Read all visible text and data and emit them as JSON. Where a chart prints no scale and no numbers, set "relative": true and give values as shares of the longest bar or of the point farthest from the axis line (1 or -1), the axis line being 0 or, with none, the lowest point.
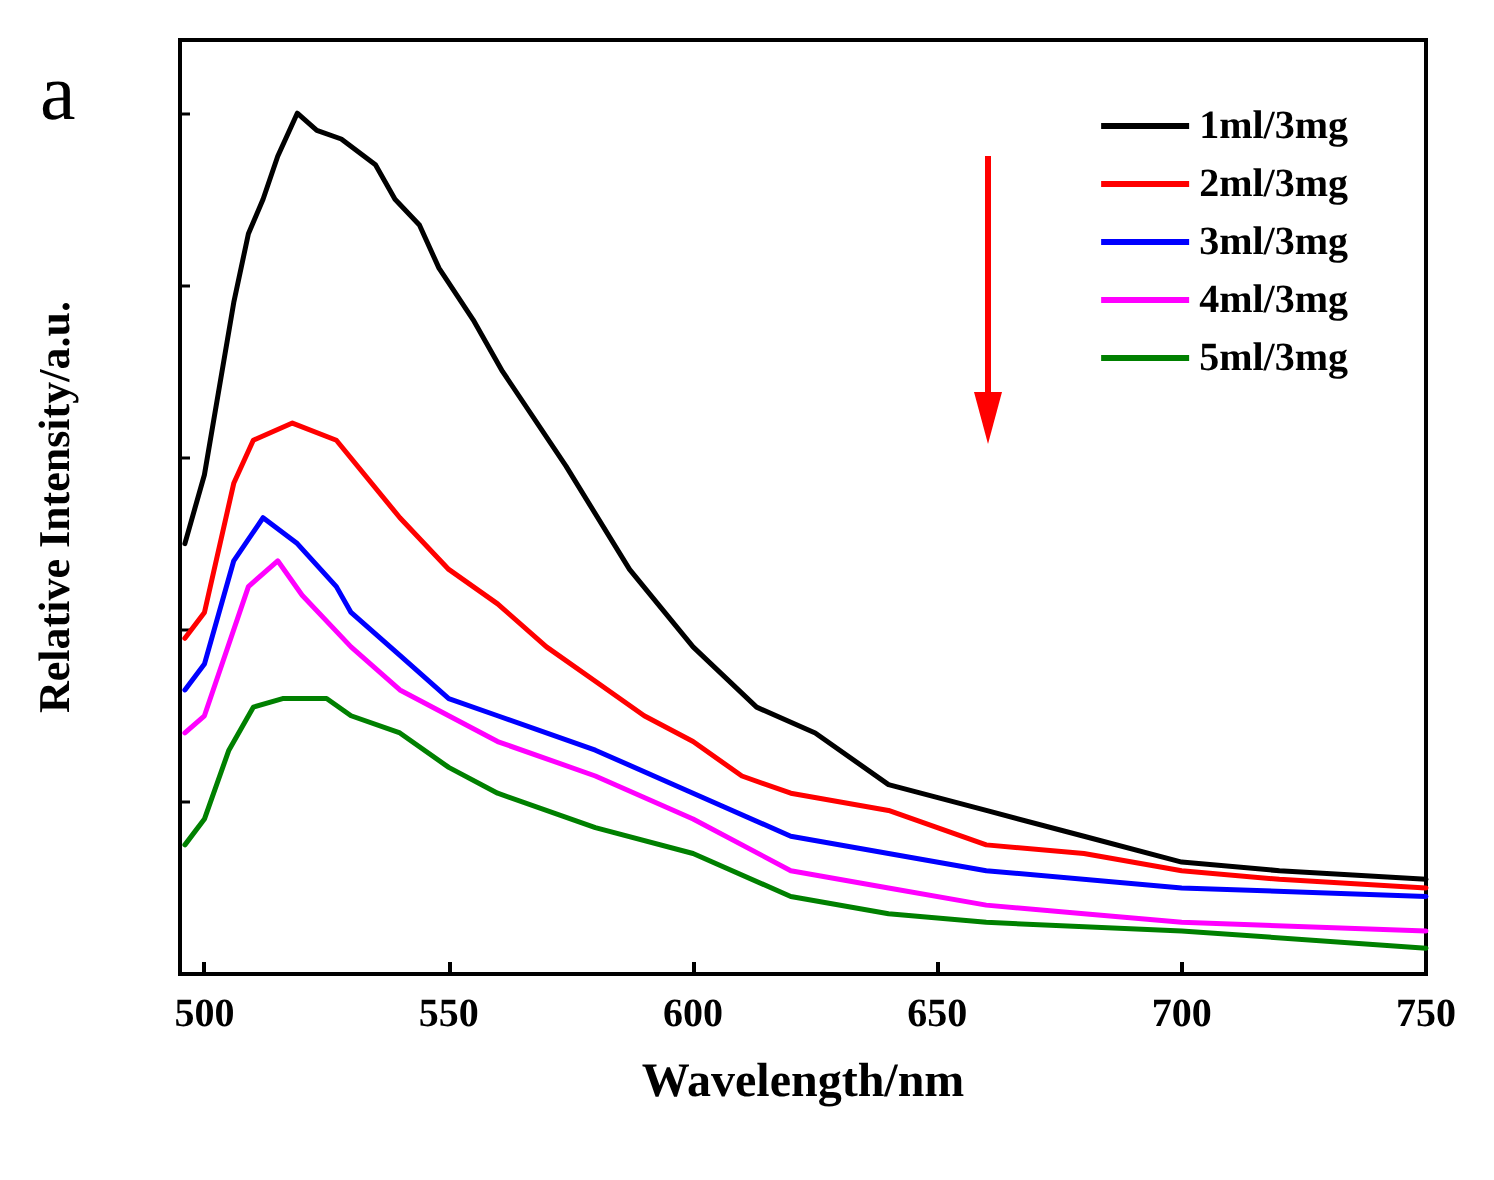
{
  "chart_data": {
    "type": "line",
    "xlabel": "Wavelength/nm",
    "ylabel": "Relative Intensity/a.u.",
    "relative": true,
    "xlim": [
      495,
      750
    ],
    "xticks": [
      500,
      550,
      600,
      650,
      700,
      750
    ],
    "legend": "top right",
    "grid": false,
    "marker": "none",
    "line_style": "solid",
    "annotations": [
      "a"
    ],
    "series": [
      {
        "name": "1ml/3mg",
        "color": "#000000",
        "x": [
          496,
          500,
          503,
          506,
          509,
          512,
          515,
          519,
          523,
          528,
          535,
          539,
          544,
          548,
          555,
          561,
          574,
          587,
          600,
          613,
          625,
          640,
          660,
          680,
          700,
          720,
          750
        ],
        "values": [
          0.5,
          0.58,
          0.68,
          0.78,
          0.86,
          0.9,
          0.95,
          1.0,
          0.98,
          0.97,
          0.94,
          0.9,
          0.87,
          0.82,
          0.76,
          0.7,
          0.59,
          0.47,
          0.38,
          0.31,
          0.28,
          0.22,
          0.19,
          0.16,
          0.13,
          0.12,
          0.11
        ]
      },
      {
        "name": "2ml/3mg",
        "color": "#ff0000",
        "x": [
          496,
          500,
          506,
          510,
          518,
          527,
          540,
          550,
          560,
          570,
          580,
          590,
          600,
          610,
          620,
          640,
          660,
          680,
          700,
          720,
          750
        ],
        "values": [
          0.39,
          0.42,
          0.57,
          0.62,
          0.64,
          0.62,
          0.53,
          0.47,
          0.43,
          0.38,
          0.34,
          0.3,
          0.27,
          0.23,
          0.21,
          0.19,
          0.15,
          0.14,
          0.12,
          0.11,
          0.1
        ]
      },
      {
        "name": "3ml/3mg",
        "color": "#0000ff",
        "x": [
          496,
          500,
          506,
          512,
          519,
          527,
          530,
          540,
          550,
          560,
          580,
          600,
          620,
          640,
          660,
          700,
          750
        ],
        "values": [
          0.33,
          0.36,
          0.48,
          0.53,
          0.5,
          0.45,
          0.42,
          0.37,
          0.32,
          0.3,
          0.26,
          0.21,
          0.16,
          0.14,
          0.12,
          0.1,
          0.09
        ]
      },
      {
        "name": "4ml/3mg",
        "color": "#ff00ff",
        "x": [
          496,
          500,
          509,
          515,
          520,
          530,
          540,
          550,
          560,
          580,
          600,
          620,
          640,
          660,
          680,
          700,
          750
        ],
        "values": [
          0.28,
          0.3,
          0.45,
          0.48,
          0.44,
          0.38,
          0.33,
          0.3,
          0.27,
          0.23,
          0.18,
          0.12,
          0.1,
          0.08,
          0.07,
          0.06,
          0.05
        ]
      },
      {
        "name": "5ml/3mg",
        "color": "#008000",
        "x": [
          496,
          500,
          505,
          510,
          516,
          525,
          530,
          540,
          550,
          560,
          580,
          600,
          620,
          640,
          660,
          700,
          750
        ],
        "values": [
          0.15,
          0.18,
          0.26,
          0.31,
          0.32,
          0.32,
          0.3,
          0.28,
          0.24,
          0.21,
          0.17,
          0.14,
          0.09,
          0.07,
          0.06,
          0.05,
          0.03
        ]
      }
    ]
  }
}
